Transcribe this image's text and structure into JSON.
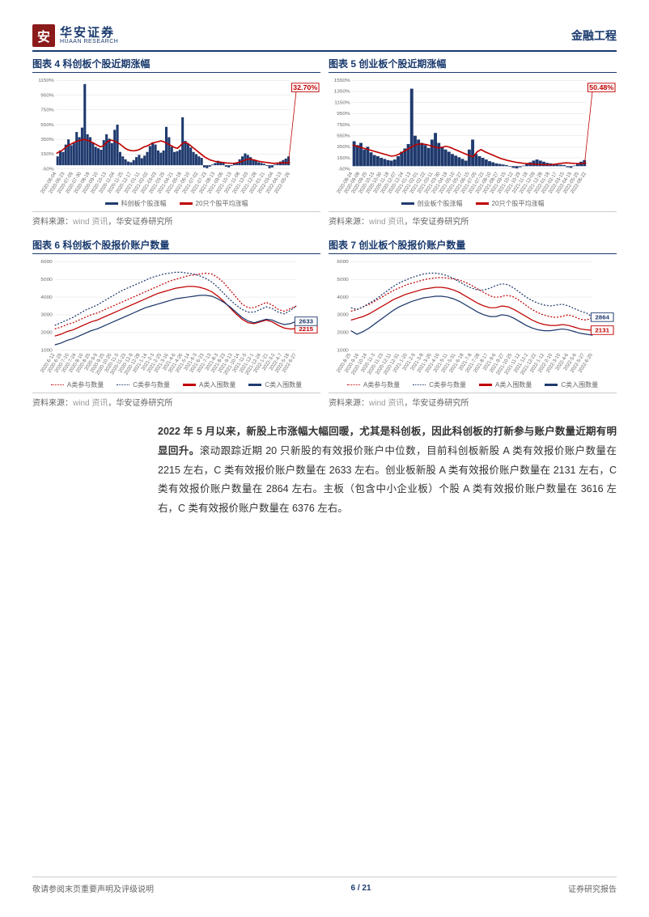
{
  "header": {
    "logo_char": "安",
    "logo_cn": "华安证券",
    "logo_en": "HUAAN RESEARCH",
    "title": "金融工程"
  },
  "chart4": {
    "title": "图表 4 科创板个股近期涨幅",
    "type": "bar-line",
    "ylim": [
      -50,
      1150
    ],
    "yticks": [
      -50,
      150,
      350,
      550,
      750,
      950,
      1150
    ],
    "ytick_labels": [
      "-50%",
      "150%",
      "350%",
      "550%",
      "750%",
      "950%",
      "1150%"
    ],
    "xlabels": [
      "2020-06-04",
      "2020-06-23",
      "2020-07-09",
      "2020-07-30",
      "2020-08-18",
      "2020-09-10",
      "2020-10-13",
      "2020-11-04",
      "2020-11-25",
      "2020-12-17",
      "2021-01-11",
      "2021-02-02",
      "2021-03-03",
      "2021-03-25",
      "2021-04-21",
      "2021-05-18",
      "2021-06-10",
      "2021-07-02",
      "2021-07-23",
      "2021-08-13",
      "2021-09-06",
      "2021-10-13",
      "2021-11-08",
      "2021-12-03",
      "2021-12-28",
      "2022-01-21",
      "2022-03-04",
      "2022-04-13",
      "2022-05-26"
    ],
    "bar_series": [
      120,
      200,
      180,
      280,
      350,
      270,
      300,
      450,
      380,
      510,
      1100,
      420,
      380,
      310,
      250,
      230,
      210,
      340,
      420,
      360,
      300,
      480,
      550,
      180,
      120,
      80,
      50,
      40,
      70,
      110,
      140,
      95,
      130,
      180,
      260,
      310,
      280,
      200,
      170,
      200,
      520,
      380,
      250,
      180,
      190,
      210,
      650,
      330,
      290,
      240,
      180,
      150,
      120,
      100,
      -30,
      -40,
      -20,
      10,
      30,
      60,
      50,
      40,
      -20,
      -30,
      -10,
      20,
      40,
      80,
      120,
      160,
      140,
      110,
      80,
      60,
      40,
      30,
      20,
      -10,
      -40,
      -30,
      10,
      20,
      50,
      70,
      90,
      120
    ],
    "line_series": [
      160,
      180,
      200,
      230,
      260,
      280,
      300,
      320,
      330,
      340,
      350,
      340,
      330,
      310,
      290,
      270,
      250,
      260,
      300,
      330,
      340,
      330,
      310,
      290,
      260,
      230,
      210,
      200,
      195,
      200,
      210,
      230,
      250,
      260,
      280,
      300,
      310,
      320,
      330,
      320,
      300,
      280,
      260,
      240,
      230,
      260,
      300,
      310,
      290,
      260,
      230,
      200,
      170,
      140,
      110,
      90,
      70,
      60,
      50,
      45,
      40,
      35,
      30,
      28,
      25,
      28,
      35,
      45,
      60,
      75,
      85,
      80,
      70,
      60,
      50,
      45,
      40,
      35,
      30,
      26,
      28,
      30,
      32,
      33,
      32,
      33
    ],
    "callout": "32.70%",
    "bar_color": "#1f3a6e",
    "line_color": "#c00000",
    "legend_bar": "科创板个股涨幅",
    "legend_line": "20只个股平均涨幅",
    "grid_color": "#dddddd"
  },
  "chart5": {
    "title": "图表 5 创业板个股近期涨幅",
    "type": "bar-line",
    "ylim": [
      -50,
      1550
    ],
    "yticks": [
      -50,
      150,
      350,
      550,
      750,
      950,
      1150,
      1350,
      1550
    ],
    "ytick_labels": [
      "-50%",
      "150%",
      "350%",
      "550%",
      "750%",
      "950%",
      "1150%",
      "1350%",
      "1550%"
    ],
    "xlabels": [
      "2020-08-24",
      "2020-09-08",
      "2020-09-25",
      "2020-10-15",
      "2020-10-30",
      "2020-11-18",
      "2020-12-07",
      "2020-12-24",
      "2021-01-13",
      "2021-02-01",
      "2021-02-22",
      "2021-03-11",
      "2021-03-30",
      "2021-04-19",
      "2021-05-10",
      "2021-05-27",
      "2021-06-15",
      "2021-07-05",
      "2021-07-22",
      "2021-08-10",
      "2021-08-27",
      "2021-09-15",
      "2021-10-12",
      "2021-10-29",
      "2021-11-18",
      "2021-12-09",
      "2021-12-28",
      "2022-01-18",
      "2022-02-17",
      "2022-03-15",
      "2022-04-19",
      "2022-05-25",
      "2022-06-22"
    ],
    "bar_series": [
      450,
      380,
      420,
      300,
      350,
      250,
      200,
      180,
      150,
      130,
      110,
      100,
      120,
      180,
      260,
      320,
      400,
      1400,
      550,
      480,
      420,
      380,
      330,
      480,
      600,
      420,
      350,
      300,
      260,
      220,
      190,
      160,
      130,
      100,
      300,
      480,
      220,
      180,
      150,
      120,
      90,
      70,
      50,
      40,
      30,
      20,
      -10,
      -30,
      -40,
      -20,
      10,
      40,
      70,
      100,
      120,
      100,
      80,
      60,
      50,
      40,
      30,
      25,
      20,
      -20,
      -30,
      10,
      50,
      80,
      110
    ],
    "line_series": [
      380,
      360,
      340,
      320,
      300,
      280,
      260,
      240,
      220,
      200,
      180,
      190,
      220,
      260,
      300,
      340,
      380,
      400,
      400,
      390,
      370,
      350,
      330,
      340,
      360,
      340,
      310,
      280,
      250,
      220,
      190,
      170,
      260,
      300,
      260,
      230,
      200,
      170,
      140,
      120,
      100,
      85,
      70,
      60,
      50,
      45,
      40,
      35,
      30,
      28,
      26,
      28,
      35,
      45,
      55,
      60,
      55,
      50,
      48,
      50,
      50
    ],
    "callout": "50.48%",
    "bar_color": "#1f3a6e",
    "line_color": "#c00000",
    "legend_bar": "创业板个股涨幅",
    "legend_line": "20只个股平均涨幅",
    "grid_color": "#dddddd"
  },
  "chart6": {
    "title": "图表 6 科创板个股报价账户数量",
    "type": "multiline",
    "ylim": [
      1000,
      6000
    ],
    "yticks": [
      1000,
      2000,
      3000,
      4000,
      5000,
      6000
    ],
    "xlabels": [
      "2020-6-12",
      "2020-6-29",
      "2020-7-10",
      "2020-7-24",
      "2020-8-10",
      "2020-8-25",
      "2020-9-9",
      "2020-9-25",
      "2020-10-20",
      "2020-11-5",
      "2020-11-23",
      "2020-12-9",
      "2020-12-28",
      "2021-1-14",
      "2021-2-3",
      "2021-2-25",
      "2021-3-16",
      "2021-4-6",
      "2021-4-26",
      "2021-5-14",
      "2021-6-3",
      "2021-6-23",
      "2021-7-13",
      "2021-8-3",
      "2021-8-23",
      "2021-9-13",
      "2021-10-14",
      "2021-11-5",
      "2021-12-1",
      "2021-12-24",
      "2022-1-21",
      "2022-3-2",
      "2022-4-7",
      "2022-5-18",
      "2022-6-27"
    ],
    "series": [
      {
        "name": "A类参与数量",
        "color": "#c00000",
        "dash": true,
        "data": [
          2200,
          2300,
          2450,
          2550,
          2700,
          2850,
          3000,
          3100,
          3250,
          3400,
          3550,
          3700,
          3850,
          4000,
          4150,
          4300,
          4450,
          4600,
          4750,
          4900,
          5000,
          5100,
          5200,
          5250,
          5300,
          5350,
          5300,
          5100,
          4800,
          4400,
          4000,
          3600,
          3400,
          3400,
          3550,
          3700,
          3550,
          3300,
          3200,
          3350,
          3500
        ]
      },
      {
        "name": "C类参与数量",
        "color": "#1f3a6e",
        "dash": true,
        "data": [
          2400,
          2550,
          2700,
          2850,
          3050,
          3250,
          3400,
          3550,
          3750,
          3950,
          4150,
          4350,
          4500,
          4650,
          4800,
          4950,
          5100,
          5200,
          5300,
          5350,
          5400,
          5400,
          5350,
          5300,
          5200,
          5050,
          4850,
          4550,
          4200,
          3850,
          3550,
          3300,
          3150,
          3150,
          3300,
          3450,
          3350,
          3150,
          3050,
          3250,
          3500
        ]
      },
      {
        "name": "A类入围数量",
        "color": "#c00000",
        "dash": false,
        "data": [
          1800,
          1900,
          2050,
          2150,
          2300,
          2450,
          2600,
          2700,
          2850,
          3000,
          3150,
          3300,
          3450,
          3600,
          3750,
          3900,
          4050,
          4200,
          4300,
          4400,
          4500,
          4550,
          4600,
          4600,
          4550,
          4450,
          4300,
          4050,
          3750,
          3400,
          3050,
          2750,
          2550,
          2500,
          2600,
          2700,
          2600,
          2400,
          2250,
          2200,
          2215
        ]
      },
      {
        "name": "C类入围数量",
        "color": "#1f3a6e",
        "dash": false,
        "data": [
          1300,
          1400,
          1550,
          1650,
          1800,
          1950,
          2100,
          2200,
          2350,
          2500,
          2650,
          2800,
          2950,
          3100,
          3250,
          3400,
          3500,
          3600,
          3700,
          3800,
          3900,
          3950,
          4000,
          4050,
          4100,
          4100,
          4050,
          3900,
          3700,
          3450,
          3150,
          2850,
          2650,
          2550,
          2650,
          2750,
          2700,
          2550,
          2450,
          2500,
          2633
        ]
      }
    ],
    "callouts": [
      {
        "label": "2215",
        "color": "#c00000",
        "y": 2215
      },
      {
        "label": "2633",
        "color": "#1f3a6e",
        "y": 2633
      }
    ],
    "legend": [
      "A类参与数量",
      "C类参与数量",
      "A类入围数量",
      "C类入围数量"
    ],
    "grid_color": "#dddddd"
  },
  "chart7": {
    "title": "图表 7 创业板个股报价账户数量",
    "type": "multiline",
    "ylim": [
      1000,
      6000
    ],
    "yticks": [
      1000,
      2000,
      3000,
      4000,
      5000,
      6000
    ],
    "xlabels": [
      "2020-8-25",
      "2020-9-16",
      "2020-10-14",
      "2020-11-3",
      "2020-11-23",
      "2020-12-11",
      "2020-12-31",
      "2021-1-20",
      "2021-2-9",
      "2021-3-8",
      "2021-3-26",
      "2021-4-16",
      "2021-5-11",
      "2021-5-31",
      "2021-6-18",
      "2021-7-8",
      "2021-7-28",
      "2021-8-17",
      "2021-9-6",
      "2021-9-27",
      "2021-10-25",
      "2021-11-12",
      "2021-12-2",
      "2021-12-22",
      "2022-1-12",
      "2022-2-10",
      "2022-3-10",
      "2022-4-6",
      "2022-5-6",
      "2022-5-27",
      "2022-6-20"
    ],
    "series": [
      {
        "name": "A类参与数量",
        "color": "#c00000",
        "dash": true,
        "data": [
          3200,
          3300,
          3450,
          3600,
          3800,
          4000,
          4200,
          4400,
          4550,
          4700,
          4800,
          4900,
          5000,
          5050,
          5100,
          5100,
          5050,
          5000,
          4900,
          4750,
          4550,
          4350,
          4150,
          4000,
          4000,
          4100,
          4050,
          3850,
          3600,
          3350,
          3150,
          3000,
          2900,
          2850,
          2900,
          3000,
          2900,
          2750,
          2700,
          2850
        ]
      },
      {
        "name": "C类参与数量",
        "color": "#1f3a6e",
        "dash": true,
        "data": [
          3400,
          3300,
          3450,
          3650,
          3850,
          4100,
          4350,
          4600,
          4800,
          4950,
          5100,
          5200,
          5300,
          5350,
          5350,
          5300,
          5200,
          5050,
          4850,
          4650,
          4500,
          4400,
          4400,
          4500,
          4650,
          4750,
          4700,
          4500,
          4250,
          4000,
          3800,
          3650,
          3550,
          3500,
          3550,
          3600,
          3500,
          3350,
          3200,
          3100,
          2864
        ]
      },
      {
        "name": "A类入围数量",
        "color": "#c00000",
        "dash": false,
        "data": [
          2700,
          2800,
          2900,
          3050,
          3250,
          3450,
          3650,
          3850,
          4000,
          4150,
          4250,
          4350,
          4450,
          4500,
          4550,
          4550,
          4500,
          4400,
          4250,
          4050,
          3850,
          3650,
          3500,
          3400,
          3400,
          3500,
          3450,
          3300,
          3100,
          2900,
          2700,
          2550,
          2450,
          2400,
          2400,
          2450,
          2400,
          2300,
          2200,
          2150,
          2131
        ]
      },
      {
        "name": "C类入围数量",
        "color": "#1f3a6e",
        "dash": false,
        "data": [
          2100,
          1900,
          2050,
          2250,
          2500,
          2750,
          3000,
          3250,
          3450,
          3600,
          3750,
          3850,
          3950,
          4000,
          4050,
          4050,
          4000,
          3900,
          3750,
          3550,
          3350,
          3150,
          3000,
          2900,
          2900,
          3000,
          2950,
          2800,
          2600,
          2400,
          2250,
          2150,
          2100,
          2100,
          2150,
          2200,
          2150,
          2050,
          1950,
          1900,
          1850
        ]
      }
    ],
    "callouts": [
      {
        "label": "2131",
        "color": "#c00000",
        "y": 2131
      },
      {
        "label": "2864",
        "color": "#1f3a6e",
        "y": 2864
      }
    ],
    "legend": [
      "A类参与数量",
      "C类参与数量",
      "A类入围数量",
      "C类入围数量"
    ],
    "grid_color": "#dddddd"
  },
  "source": {
    "prefix": "资料来源：",
    "wind": "wind 资讯",
    "suffix": "，华安证券研究所"
  },
  "body": {
    "bold": "2022 年 5 月以来，新股上市涨幅大幅回暖，尤其是科创板，因此科创板的打新参与账户数量近期有明显回升。",
    "rest": "滚动跟踪近期 20 只新股的有效报价账户中位数，目前科创板新股 A 类有效报价账户数量在 2215 左右，C 类有效报价账户数量在 2633 左右。创业板新股 A 类有效报价账户数量在 2131 左右，C 类有效报价账户数量在 2864 左右。主板（包含中小企业板）个股 A 类有效报价账户数量在 3616 左右，C 类有效报价账户数量在 6376 左右。"
  },
  "footer": {
    "left": "敬请参阅末页重要声明及评级说明",
    "center": "6 / 21",
    "right": "证券研究报告"
  }
}
